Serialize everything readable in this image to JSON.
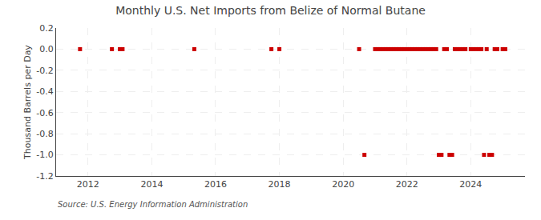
{
  "chart_data": {
    "type": "scatter",
    "title": "Monthly U.S. Net Imports from Belize of Normal Butane",
    "ylabel": "Thousand Barrels per Day",
    "annotations": [
      "Source: U.S. Energy Information Administration"
    ],
    "x": [
      2011.75,
      2012.75,
      2013,
      2013.0833333333333,
      2015.3333333333333,
      2017.75,
      2018,
      2020.5,
      2020.6666666666667,
      2021,
      2021.0833333333333,
      2021.1666666666667,
      2021.25,
      2021.3333333333333,
      2021.4166666666667,
      2021.5,
      2021.5833333333333,
      2021.6666666666667,
      2021.75,
      2021.8333333333333,
      2021.9166666666667,
      2022,
      2022.0833333333333,
      2022.1666666666667,
      2022.25,
      2022.3333333333333,
      2022.4166666666667,
      2022.5,
      2022.5833333333333,
      2022.6666666666667,
      2022.75,
      2022.8333333333333,
      2022.9166666666667,
      2023,
      2023.0833333333333,
      2023.1666666666667,
      2023.25,
      2023.3333333333333,
      2023.4166666666667,
      2023.5,
      2023.5833333333333,
      2023.6666666666667,
      2023.75,
      2023.8333333333333,
      2024,
      2024.0833333333333,
      2024.1666666666667,
      2024.25,
      2024.3333333333333,
      2024.4166666666667,
      2024.5,
      2024.5833333333333,
      2024.6666666666667,
      2024.75,
      2024.8333333333333,
      2025,
      2025.0833333333333
    ],
    "values": [
      0.0,
      0.0,
      0.0,
      0.0,
      0.0,
      0.0,
      0.0,
      0.0,
      -1.0,
      0.0,
      0.0,
      0.0,
      0.0,
      0.0,
      0.0,
      0.0,
      0.0,
      0.0,
      0.0,
      0.0,
      0.0,
      0.0,
      0.0,
      0.0,
      0.0,
      0.0,
      0.0,
      0.0,
      0.0,
      0.0,
      0.0,
      0.0,
      0.0,
      -1.0,
      -1.0,
      0.0,
      0.0,
      -1.0,
      -1.0,
      0.0,
      0.0,
      0.0,
      0.0,
      0.0,
      0.0,
      0.0,
      0.0,
      0.0,
      0.0,
      -1.0,
      0.0,
      -1.0,
      -1.0,
      0.0,
      0.0,
      0.0,
      0.0
    ],
    "color": "#cc0000",
    "marker": "square",
    "xlim": [
      2011.0,
      2025.7
    ],
    "xticks": [
      2012,
      2014,
      2016,
      2018,
      2020,
      2022,
      2024
    ],
    "ylim": [
      -1.2,
      0.2
    ],
    "yticks": [
      0.2,
      {
        "value": 0.0,
        "label": "0.0"
      },
      -0.2,
      -0.4,
      -0.6,
      -0.8,
      {
        "value": -1.0,
        "label": "-1.0"
      },
      -1.2
    ],
    "grid": true
  }
}
